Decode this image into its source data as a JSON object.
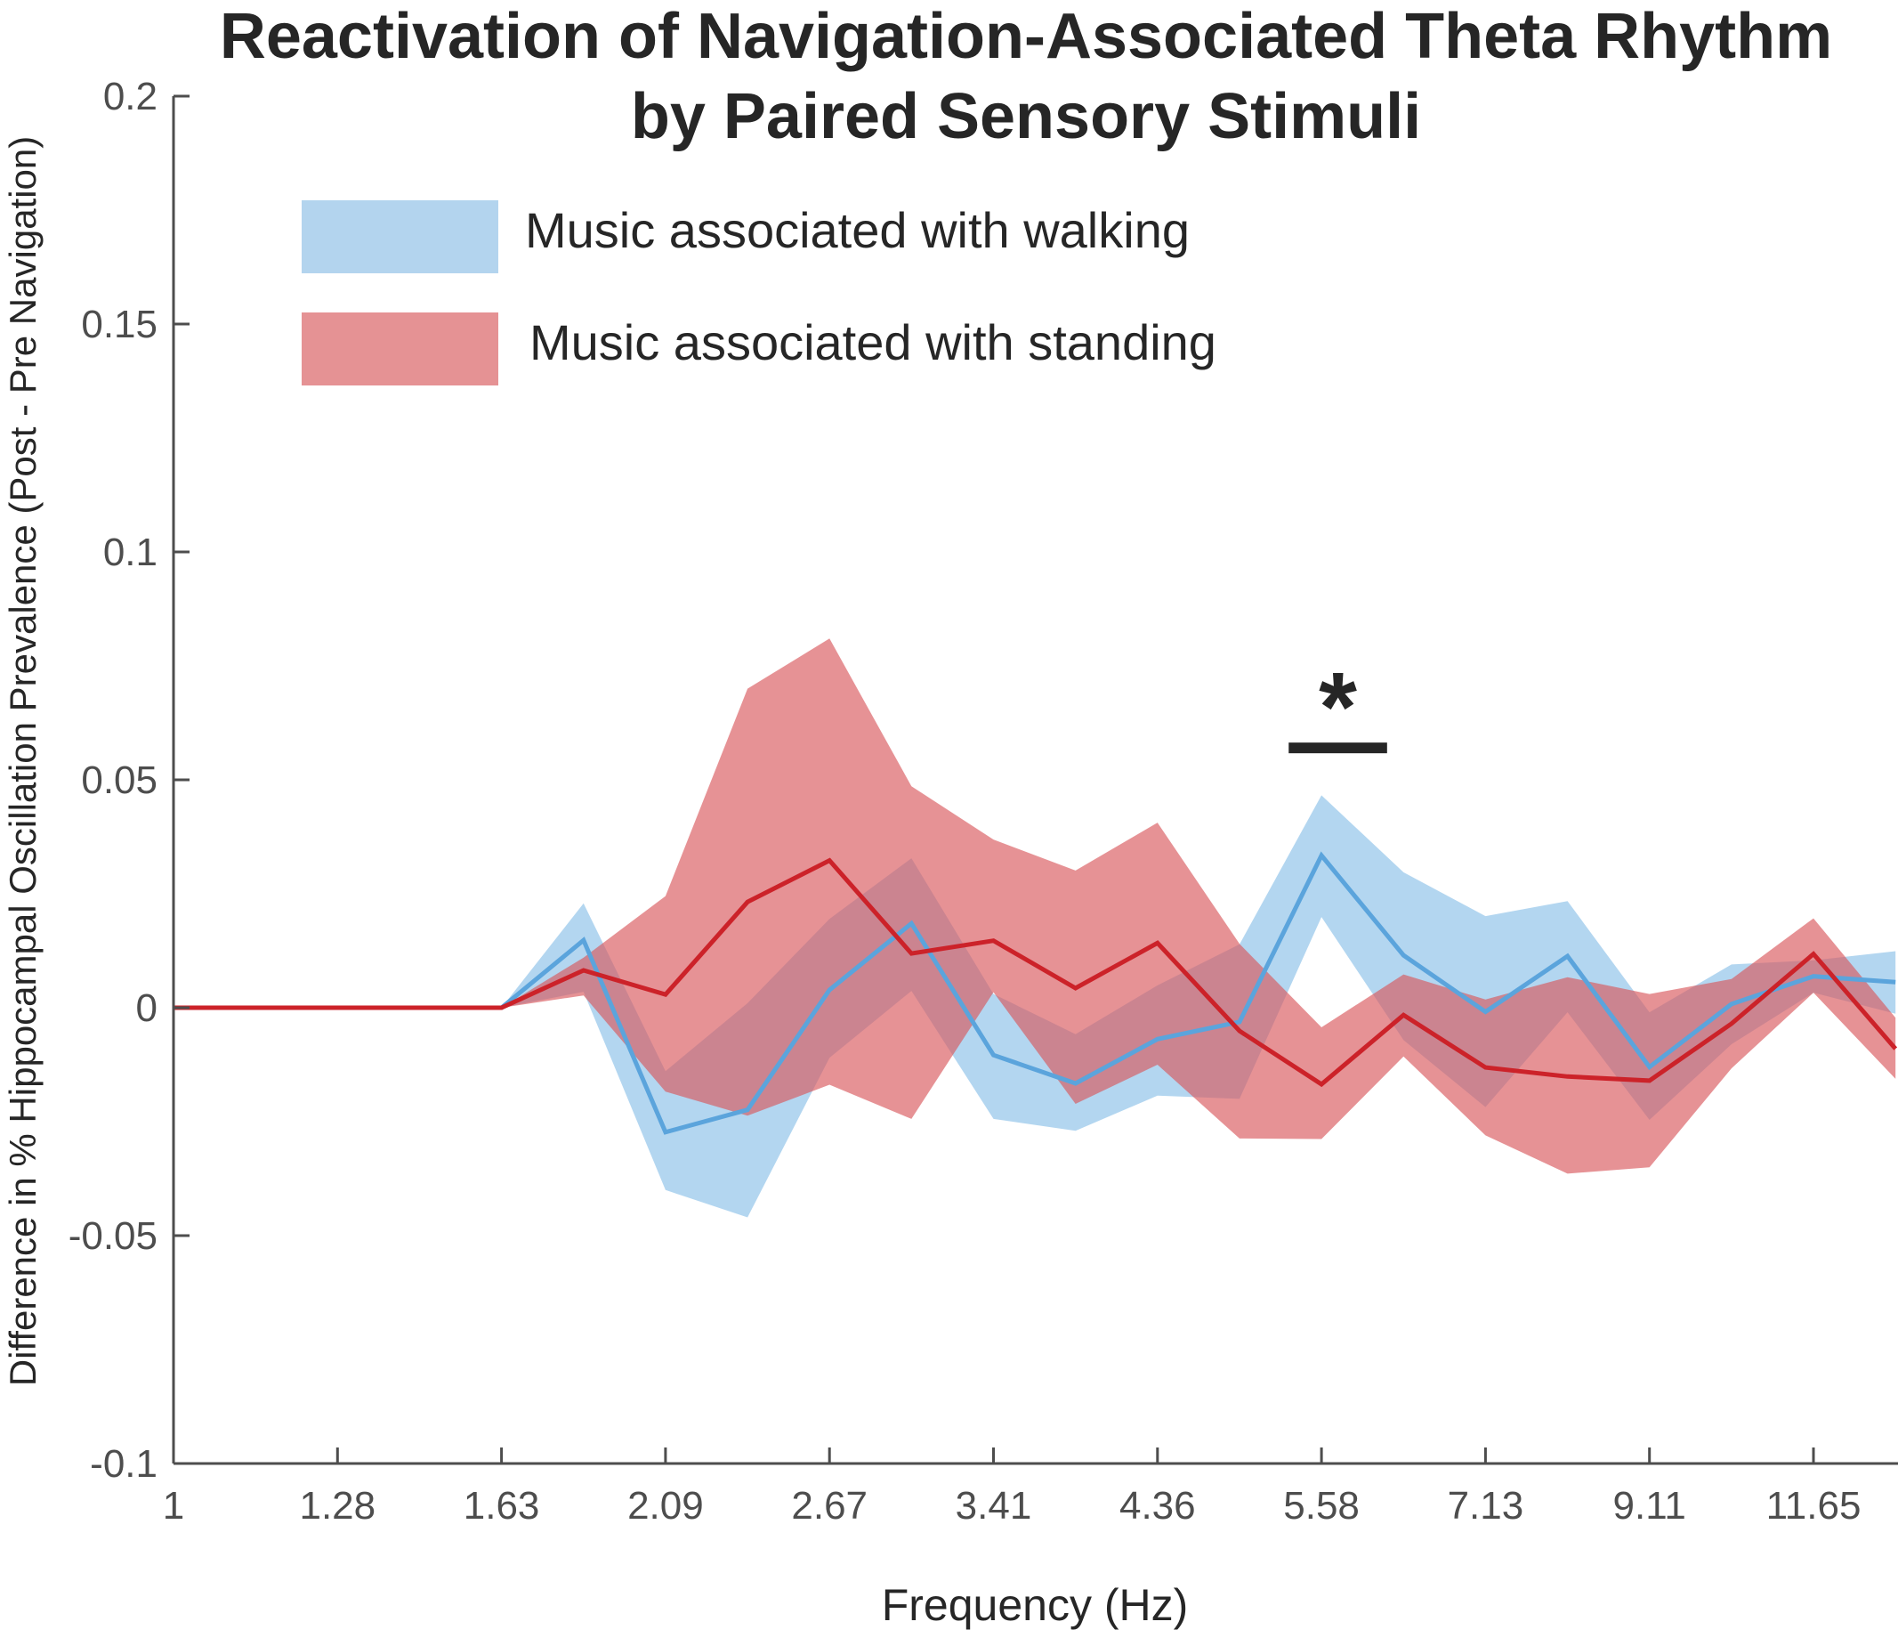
{
  "chart_data": {
    "type": "area",
    "title": [
      "Reactivation of Navigation-Associated Theta Rhythm",
      "by Paired Sensory Stimuli"
    ],
    "xlabel": "Frequency (Hz)",
    "ylabel": "Difference in % Hippocampal Oscillation Prevalence (Post - Pre Navigation)",
    "x_scale": "log",
    "x_tick_labels": [
      "1",
      "1.28",
      "1.63",
      "2.09",
      "2.67",
      "3.41",
      "4.36",
      "5.58",
      "7.13",
      "9.11",
      "11.65"
    ],
    "y_tick_labels": [
      "0.2",
      "0.15",
      "0.1",
      "0.05",
      "0",
      "-0.05",
      "-0.1"
    ],
    "y_ticks": [
      0.2,
      0.15,
      0.1,
      0.05,
      0,
      -0.05,
      -0.1
    ],
    "ylim": [
      -0.1,
      0.2
    ],
    "x_index_range": [
      0,
      10.5
    ],
    "grid": false,
    "legend_position": "top-left",
    "x": [
      1,
      1.13,
      1.28,
      1.45,
      1.63,
      1.85,
      2.09,
      2.36,
      2.67,
      3.02,
      3.41,
      3.86,
      4.36,
      4.93,
      5.58,
      6.3,
      7.13,
      8.06,
      9.11,
      10.3,
      11.65,
      13.17
    ],
    "x_index": [
      0,
      0.5,
      1,
      1.5,
      2,
      2.5,
      3,
      3.5,
      4,
      4.5,
      5,
      5.5,
      6,
      6.5,
      7,
      7.5,
      8,
      8.5,
      9,
      9.5,
      10,
      10.5
    ],
    "series": [
      {
        "name": "Music associated with walking",
        "band_color": "#9ECAEC",
        "line_color": "#5BA4DC",
        "values": [
          0,
          0,
          0,
          0,
          0,
          0.0148,
          -0.0273,
          -0.0224,
          0.0039,
          0.0185,
          -0.0104,
          -0.0166,
          -0.0069,
          -0.0031,
          0.0334,
          0.0115,
          -0.0009,
          0.0113,
          -0.013,
          0.0008,
          0.0069,
          0.0056
        ],
        "upper": [
          0,
          0,
          0,
          0,
          0,
          0.0229,
          -0.0139,
          0.001,
          0.0195,
          0.0328,
          0.003,
          -0.0058,
          0.0049,
          0.0139,
          0.0466,
          0.0297,
          0.0201,
          0.0234,
          -0.001,
          0.0095,
          0.0104,
          0.0124
        ],
        "lower": [
          0,
          0,
          0,
          0,
          0,
          0.0035,
          -0.04,
          -0.046,
          -0.011,
          0.0037,
          -0.0244,
          -0.027,
          -0.0193,
          -0.02,
          0.0199,
          -0.0071,
          -0.0218,
          -0.001,
          -0.0246,
          -0.008,
          0.0033,
          -0.0013
        ]
      },
      {
        "name": "Music associated with standing",
        "band_color": "#D9585C",
        "line_color": "#CC2229",
        "values": [
          0,
          0,
          0,
          0,
          0,
          0.0082,
          0.0029,
          0.0232,
          0.0323,
          0.0119,
          0.0147,
          0.0043,
          0.0142,
          -0.0051,
          -0.0168,
          -0.0016,
          -0.0131,
          -0.0151,
          -0.016,
          -0.0035,
          0.0118,
          -0.009
        ],
        "upper": [
          0,
          0,
          0,
          0,
          0,
          0.011,
          0.0245,
          0.07,
          0.081,
          0.0486,
          0.0369,
          0.0301,
          0.0406,
          0.014,
          -0.0043,
          0.0073,
          0.0018,
          0.0067,
          0.003,
          0.0063,
          0.0196,
          -0.0022
        ],
        "lower": [
          0,
          0,
          0,
          0,
          0,
          0.0027,
          -0.0184,
          -0.0237,
          -0.0169,
          -0.0244,
          0.0034,
          -0.0211,
          -0.0125,
          -0.0287,
          -0.0288,
          -0.0107,
          -0.028,
          -0.0364,
          -0.035,
          -0.0133,
          0.0033,
          -0.0156
        ]
      }
    ],
    "legend": [
      {
        "label": "Music associated with walking",
        "color": "#B3D4EE"
      },
      {
        "label": "Music associated with standing",
        "color": "#E59294"
      }
    ],
    "annotations": [
      {
        "text": "*",
        "type": "significance",
        "x_index_range": [
          6.8,
          7.4
        ],
        "y": 0.057
      }
    ]
  }
}
